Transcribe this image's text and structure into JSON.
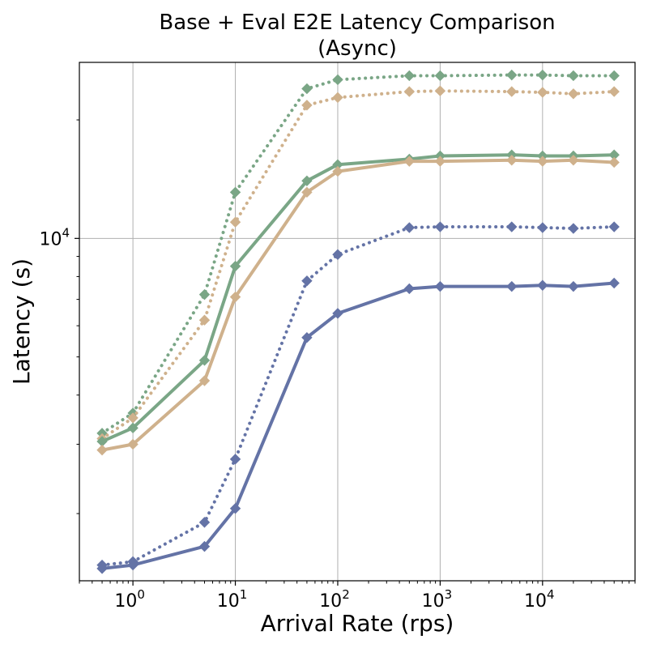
{
  "chart_data": {
    "type": "line",
    "title_lines": [
      "Base + Eval E2E Latency Comparison",
      "(Async)"
    ],
    "xlabel": "Arrival Rate (rps)",
    "ylabel": "Latency (s)",
    "xscale": "log",
    "yscale": "log",
    "xlim": [
      0.3,
      80000
    ],
    "ylim": [
      1350,
      28000
    ],
    "grid": true,
    "legend": "none",
    "x_ticks": [
      {
        "base": "10",
        "exp": "0",
        "value": 1
      },
      {
        "base": "10",
        "exp": "1",
        "value": 10
      },
      {
        "base": "10",
        "exp": "2",
        "value": 100
      },
      {
        "base": "10",
        "exp": "3",
        "value": 1000
      },
      {
        "base": "10",
        "exp": "4",
        "value": 10000
      }
    ],
    "y_ticks": [
      {
        "base": "10",
        "exp": "4",
        "value": 10000
      }
    ],
    "x": [
      0.5,
      1,
      5,
      10,
      50,
      100,
      500,
      1000,
      5000,
      10000,
      20000,
      50000
    ],
    "series": [
      {
        "color": "#7aa686",
        "style": "dotted",
        "values": [
          3200,
          3600,
          7200,
          13100,
          24000,
          25300,
          25900,
          25900,
          26000,
          26000,
          25900,
          25900
        ]
      },
      {
        "color": "#cfb18c",
        "style": "dotted",
        "values": [
          3100,
          3500,
          6200,
          11000,
          21800,
          22800,
          23600,
          23700,
          23600,
          23500,
          23300,
          23600
        ]
      },
      {
        "color": "#7aa686",
        "style": "solid",
        "values": [
          3050,
          3300,
          4900,
          8500,
          14000,
          15400,
          15900,
          16200,
          16300,
          16200,
          16200,
          16300
        ]
      },
      {
        "color": "#cfb18c",
        "style": "solid",
        "values": [
          2900,
          3000,
          4350,
          7100,
          13100,
          14800,
          15700,
          15700,
          15800,
          15700,
          15800,
          15600
        ]
      },
      {
        "color": "#6473a6",
        "style": "dotted",
        "values": [
          1480,
          1510,
          1900,
          2750,
          7800,
          9100,
          10650,
          10700,
          10700,
          10650,
          10600,
          10700
        ]
      },
      {
        "color": "#6473a6",
        "style": "solid",
        "values": [
          1450,
          1480,
          1650,
          2060,
          5600,
          6450,
          7450,
          7550,
          7550,
          7600,
          7550,
          7700
        ]
      }
    ]
  }
}
